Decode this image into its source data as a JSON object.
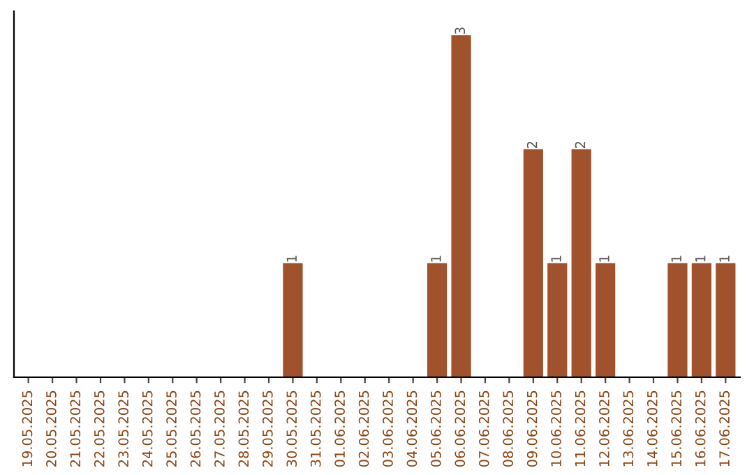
{
  "chart_data": {
    "type": "bar",
    "categories": [
      "19.05.2025",
      "20.05.2025",
      "21.05.2025",
      "22.05.2025",
      "23.05.2025",
      "24.05.2025",
      "25.05.2025",
      "26.05.2025",
      "27.05.2025",
      "28.05.2025",
      "29.05.2025",
      "30.05.2025",
      "31.05.2025",
      "01.06.2025",
      "02.06.2025",
      "03.06.2025",
      "04.06.2025",
      "05.06.2025",
      "06.06.2025",
      "07.06.2025",
      "08.06.2025",
      "09.06.2025",
      "10.06.2025",
      "11.06.2025",
      "12.06.2025",
      "13.06.2025",
      "14.06.2025",
      "15.06.2025",
      "16.06.2025",
      "17.06.2025"
    ],
    "values": [
      0,
      0,
      0,
      0,
      0,
      0,
      0,
      0,
      0,
      0,
      0,
      1,
      0,
      0,
      0,
      0,
      0,
      1,
      3,
      0,
      0,
      2,
      1,
      2,
      1,
      0,
      0,
      1,
      1,
      1
    ],
    "value_labels": [
      null,
      null,
      null,
      null,
      null,
      null,
      null,
      null,
      null,
      null,
      null,
      "1",
      null,
      null,
      null,
      null,
      null,
      "1",
      "3",
      null,
      null,
      "2",
      "1",
      "2",
      "1",
      null,
      null,
      "1",
      "1",
      "1"
    ],
    "color": "#a0522d"
  }
}
